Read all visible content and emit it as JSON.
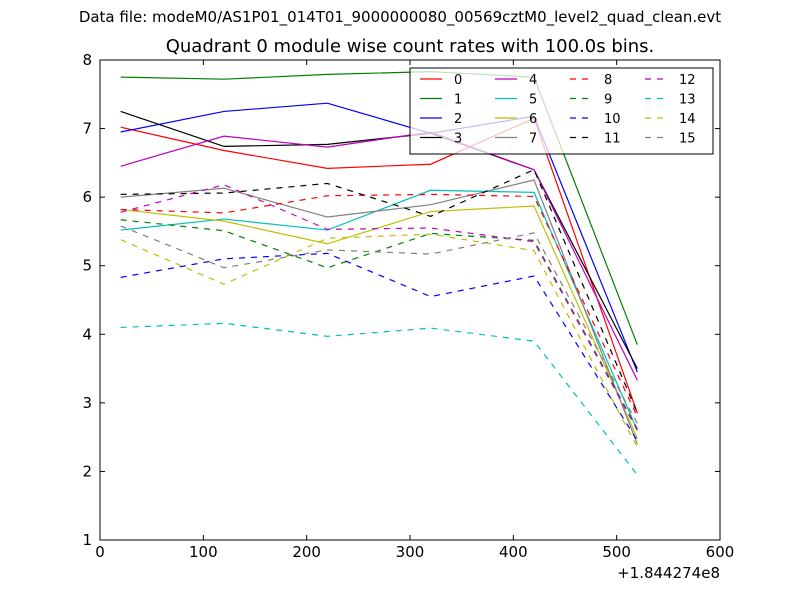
{
  "chart_data": {
    "type": "line",
    "suptitle": "Data file: modeM0/AS1P01_014T01_9000000080_00569cztM0_level2_quad_clean.evt",
    "title": "Quadrant 0 module wise count rates with 100.0s bins.",
    "xlabel": "",
    "ylabel": "",
    "xlim": [
      0,
      600
    ],
    "ylim": [
      1,
      8
    ],
    "x_offset_label": "+1.844274e8",
    "xticks": [
      0,
      100,
      200,
      300,
      400,
      500,
      600
    ],
    "yticks": [
      1,
      2,
      3,
      4,
      5,
      6,
      7,
      8
    ],
    "grid": false,
    "legend_position": "top-right",
    "x": [
      20,
      120,
      220,
      320,
      420,
      520
    ],
    "series": [
      {
        "name": "0",
        "color": "#ff0000",
        "dash": "solid",
        "values": [
          7.02,
          6.68,
          6.42,
          6.48,
          7.15,
          2.85
        ]
      },
      {
        "name": "1",
        "color": "#008000",
        "dash": "solid",
        "values": [
          7.75,
          7.72,
          7.79,
          7.83,
          7.75,
          3.85
        ]
      },
      {
        "name": "2",
        "color": "#0000ff",
        "dash": "solid",
        "values": [
          6.95,
          7.25,
          7.37,
          6.93,
          7.18,
          3.45
        ]
      },
      {
        "name": "3",
        "color": "#000000",
        "dash": "solid",
        "values": [
          7.25,
          6.74,
          6.77,
          6.93,
          6.4,
          3.5
        ]
      },
      {
        "name": "4",
        "color": "#bf00bf",
        "dash": "solid",
        "values": [
          6.45,
          6.89,
          6.73,
          6.95,
          6.4,
          3.33
        ]
      },
      {
        "name": "5",
        "color": "#00bfbf",
        "dash": "solid",
        "values": [
          5.52,
          5.68,
          5.52,
          6.1,
          6.07,
          2.6
        ]
      },
      {
        "name": "6",
        "color": "#bfbf00",
        "dash": "solid",
        "values": [
          5.82,
          5.65,
          5.32,
          5.79,
          5.87,
          2.48
        ]
      },
      {
        "name": "7",
        "color": "#808080",
        "dash": "solid",
        "values": [
          6.0,
          6.13,
          5.71,
          5.89,
          6.25,
          2.4
        ]
      },
      {
        "name": "8",
        "color": "#ff0000",
        "dash": "dashed",
        "values": [
          5.82,
          5.77,
          6.02,
          6.04,
          6.01,
          2.8
        ]
      },
      {
        "name": "9",
        "color": "#008000",
        "dash": "dashed",
        "values": [
          5.67,
          5.51,
          4.97,
          5.47,
          5.37,
          2.62
        ]
      },
      {
        "name": "10",
        "color": "#0000ff",
        "dash": "dashed",
        "values": [
          4.83,
          5.1,
          5.18,
          4.55,
          4.85,
          2.45
        ]
      },
      {
        "name": "11",
        "color": "#000000",
        "dash": "dashed",
        "values": [
          6.04,
          6.06,
          6.2,
          5.72,
          6.4,
          2.85
        ]
      },
      {
        "name": "12",
        "color": "#bf00bf",
        "dash": "dashed",
        "values": [
          5.78,
          6.18,
          5.53,
          5.55,
          5.35,
          2.6
        ]
      },
      {
        "name": "13",
        "color": "#00bfbf",
        "dash": "dashed",
        "values": [
          4.1,
          4.16,
          3.97,
          4.09,
          3.9,
          1.95
        ]
      },
      {
        "name": "14",
        "color": "#bfbf00",
        "dash": "dashed",
        "values": [
          5.38,
          4.73,
          5.4,
          5.46,
          5.22,
          2.35
        ]
      },
      {
        "name": "15",
        "color": "#808080",
        "dash": "dashed",
        "values": [
          5.58,
          4.97,
          5.23,
          5.17,
          5.48,
          2.7
        ]
      }
    ]
  }
}
